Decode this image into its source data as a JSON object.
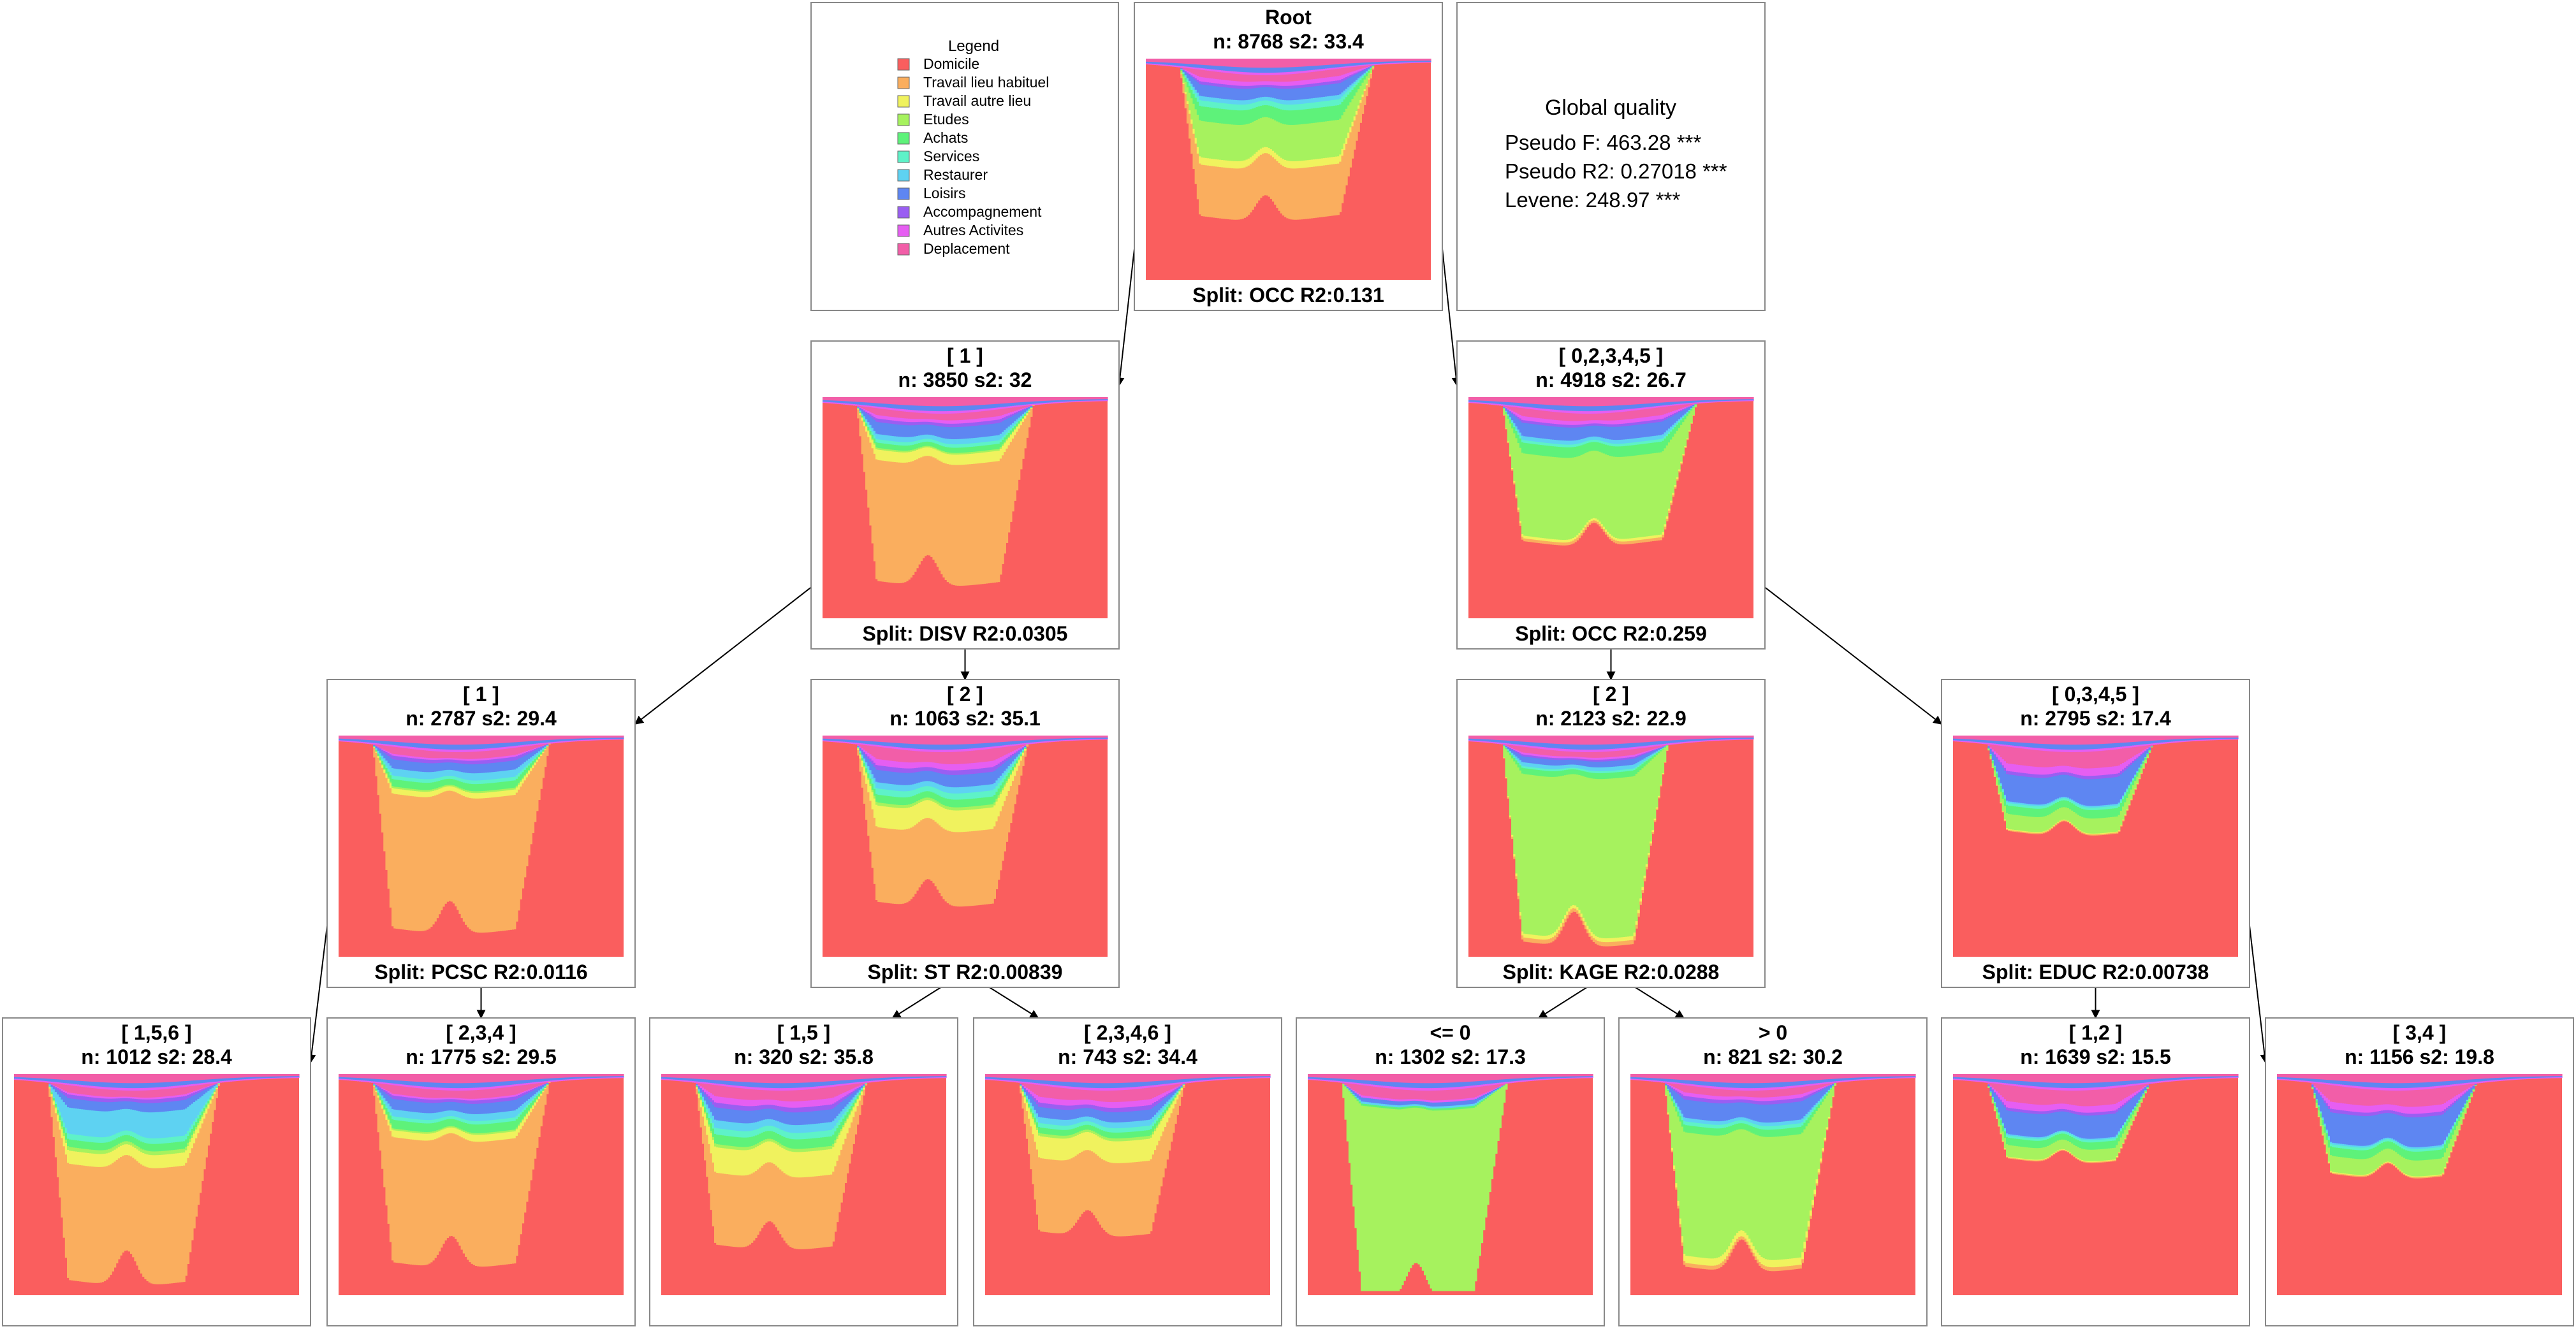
{
  "legend": {
    "title": "Legend",
    "items": [
      {
        "label": "Domicile",
        "color": "#FA5E5E"
      },
      {
        "label": "Travail lieu habituel",
        "color": "#FAAE5E"
      },
      {
        "label": "Travail autre lieu",
        "color": "#F0F25E"
      },
      {
        "label": "Etudes",
        "color": "#A6F25E"
      },
      {
        "label": "Achats",
        "color": "#5EF27A"
      },
      {
        "label": "Services",
        "color": "#5EF2C8"
      },
      {
        "label": "Restaurer",
        "color": "#5ED2F2"
      },
      {
        "label": "Loisirs",
        "color": "#5E86F2"
      },
      {
        "label": "Accompagnement",
        "color": "#9A5EF2"
      },
      {
        "label": "Autres Activites",
        "color": "#E65EF2"
      },
      {
        "label": "Deplacement",
        "color": "#F25EA8"
      }
    ]
  },
  "quality": {
    "title": "Global quality",
    "lines": [
      "Pseudo F: 463.28 ***",
      "Pseudo R2: 0.27018 ***",
      "Levene: 248.97 ***"
    ]
  },
  "nodes": [
    {
      "id": "root",
      "label": "Root",
      "stats": "n: 8768 s2: 33.4",
      "split": "Split: OCC R2:0.131",
      "profile": {
        "depth": 0.66,
        "b1": 0.22,
        "b2": 0.58,
        "shares": [
          0.35,
          0.05,
          0.25,
          0.1,
          0.04,
          0.03,
          0.08,
          0.02,
          0.03,
          0.05
        ]
      }
    },
    {
      "id": "n1",
      "label": "[ 1 ]",
      "stats": "n: 3850 s2: 32",
      "split": "Split: DISV R2:0.0305",
      "profile": {
        "depth": 0.78,
        "b1": 0.18,
        "b2": 0.52,
        "shares": [
          0.7,
          0.06,
          0.01,
          0.03,
          0.02,
          0.03,
          0.07,
          0.02,
          0.02,
          0.04
        ]
      }
    },
    {
      "id": "n2",
      "label": "[ 0,2,3,4,5 ]",
      "stats": "n: 4918 s2: 26.7",
      "split": "Split: OCC R2:0.259",
      "profile": {
        "depth": 0.6,
        "b1": 0.26,
        "b2": 0.58,
        "shares": [
          0.02,
          0.02,
          0.62,
          0.08,
          0.02,
          0.03,
          0.1,
          0.02,
          0.03,
          0.06
        ]
      }
    },
    {
      "id": "n3",
      "label": "[ 1 ]",
      "stats": "n: 2787 s2: 29.4",
      "split": "Split: PCSC R2:0.0116",
      "profile": {
        "depth": 0.82,
        "b1": 0.22,
        "b2": 0.52,
        "shares": [
          0.74,
          0.03,
          0.01,
          0.04,
          0.02,
          0.04,
          0.05,
          0.02,
          0.01,
          0.04
        ]
      }
    },
    {
      "id": "n4",
      "label": "[ 2 ]",
      "stats": "n: 1063 s2: 35.1",
      "split": "Split: ST R2:0.00839",
      "profile": {
        "depth": 0.7,
        "b1": 0.2,
        "b2": 0.5,
        "shares": [
          0.48,
          0.14,
          0.02,
          0.05,
          0.04,
          0.04,
          0.08,
          0.03,
          0.04,
          0.08
        ]
      }
    },
    {
      "id": "n5",
      "label": "[ 2 ]",
      "stats": "n: 2123 s2: 22.9",
      "split": "Split: KAGE R2:0.0288",
      "profile": {
        "depth": 0.88,
        "b1": 0.22,
        "b2": 0.48,
        "shares": [
          0.02,
          0.02,
          0.82,
          0.03,
          0.01,
          0.02,
          0.03,
          0.01,
          0.01,
          0.03
        ]
      }
    },
    {
      "id": "n6",
      "label": "[ 0,3,4,5 ]",
      "stats": "n: 2795 s2: 17.4",
      "split": "Split: EDUC R2:0.00738",
      "profile": {
        "depth": 0.38,
        "b1": 0.26,
        "b2": 0.48,
        "shares": [
          0.01,
          0.01,
          0.18,
          0.1,
          0.03,
          0.02,
          0.32,
          0.04,
          0.09,
          0.2
        ]
      }
    },
    {
      "id": "n7",
      "label": "[ 1,5,6 ]",
      "stats": "n: 1012 s2: 28.4",
      "split": "",
      "profile": {
        "depth": 0.88,
        "b1": 0.25,
        "b2": 0.5,
        "shares": [
          0.62,
          0.07,
          0.02,
          0.04,
          0.03,
          0.14,
          0.05,
          0.02,
          0.01,
          0.04
        ]
      }
    },
    {
      "id": "n8",
      "label": "[ 2,3,4 ]",
      "stats": "n: 1775 s2: 29.5",
      "split": "",
      "profile": {
        "depth": 0.8,
        "b1": 0.23,
        "b2": 0.52,
        "shares": [
          0.72,
          0.04,
          0.01,
          0.05,
          0.02,
          0.04,
          0.06,
          0.02,
          0.01,
          0.05
        ]
      }
    },
    {
      "id": "n9",
      "label": "[ 1,5 ]",
      "stats": "n: 320 s2: 35.8",
      "split": "",
      "profile": {
        "depth": 0.72,
        "b1": 0.22,
        "b2": 0.5,
        "shares": [
          0.45,
          0.16,
          0.02,
          0.06,
          0.04,
          0.05,
          0.08,
          0.03,
          0.04,
          0.07
        ]
      }
    },
    {
      "id": "n10",
      "label": "[ 2,3,4,6 ]",
      "stats": "n: 743 s2: 34.4",
      "split": "",
      "profile": {
        "depth": 0.66,
        "b1": 0.2,
        "b2": 0.48,
        "shares": [
          0.5,
          0.15,
          0.02,
          0.04,
          0.03,
          0.04,
          0.07,
          0.03,
          0.04,
          0.08
        ]
      }
    },
    {
      "id": "n11",
      "label": "<= 0",
      "stats": "n: 1302 s2: 17.3",
      "split": "",
      "profile": {
        "depth": 0.95,
        "b1": 0.24,
        "b2": 0.48,
        "shares": [
          0.0,
          0.0,
          0.9,
          0.01,
          0.0,
          0.01,
          0.02,
          0.0,
          0.01,
          0.05
        ]
      }
    },
    {
      "id": "n12",
      "label": "> 0",
      "stats": "n: 821 s2: 30.2",
      "split": "",
      "profile": {
        "depth": 0.82,
        "b1": 0.24,
        "b2": 0.5,
        "shares": [
          0.02,
          0.04,
          0.68,
          0.04,
          0.02,
          0.02,
          0.1,
          0.02,
          0.02,
          0.04
        ]
      }
    },
    {
      "id": "n13",
      "label": "[ 1,2 ]",
      "stats": "n: 1639 s2: 15.5",
      "split": "",
      "profile": {
        "depth": 0.33,
        "b1": 0.26,
        "b2": 0.47,
        "shares": [
          0.01,
          0.01,
          0.16,
          0.1,
          0.03,
          0.02,
          0.32,
          0.04,
          0.09,
          0.22
        ]
      }
    },
    {
      "id": "n14",
      "label": "[ 3,4 ]",
      "stats": "n: 1156 s2: 19.8",
      "split": "",
      "profile": {
        "depth": 0.4,
        "b1": 0.26,
        "b2": 0.48,
        "shares": [
          0.01,
          0.01,
          0.18,
          0.1,
          0.03,
          0.02,
          0.34,
          0.04,
          0.08,
          0.19
        ]
      }
    }
  ],
  "edges": [
    [
      "root",
      "n1"
    ],
    [
      "root",
      "n2"
    ],
    [
      "n1",
      "n3"
    ],
    [
      "n1",
      "n4"
    ],
    [
      "n2",
      "n5"
    ],
    [
      "n2",
      "n6"
    ],
    [
      "n3",
      "n7"
    ],
    [
      "n3",
      "n8"
    ],
    [
      "n4",
      "n9"
    ],
    [
      "n4",
      "n10"
    ],
    [
      "n5",
      "n11"
    ],
    [
      "n5",
      "n12"
    ],
    [
      "n6",
      "n13"
    ],
    [
      "n6",
      "n14"
    ]
  ]
}
